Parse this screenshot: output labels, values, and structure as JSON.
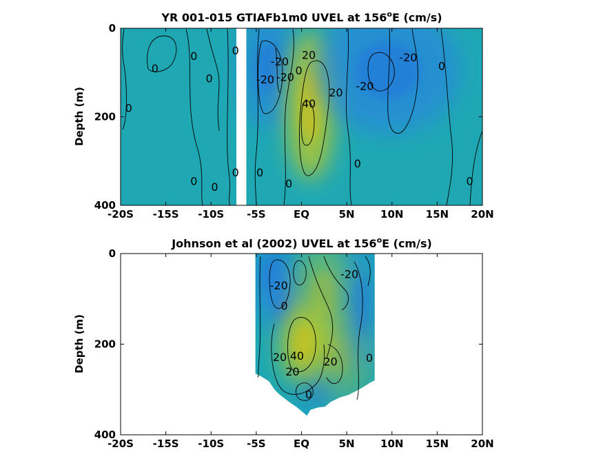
{
  "colors": {
    "background": "#ffffff",
    "neutral": "#1fa8b4",
    "westward": "#2a80e4",
    "eastward": "#b8c82a",
    "contour": "#000000"
  },
  "chart_data": [
    {
      "type": "heatmap",
      "title": "YR 001-015 GTIAFb1m0 UVEL at 156ºE (cm/s)",
      "title_main": "YR 001-015 GTIAFb1m0 UVEL at 156",
      "title_sup": "o",
      "title_end": "E (cm/s)",
      "xlabel": "",
      "ylabel": "Depth (m)",
      "xlim": [
        -20,
        20
      ],
      "ylim": [
        0,
        400
      ],
      "y_reversed": true,
      "x_ticks": [
        -20,
        -15,
        -10,
        -5,
        0,
        5,
        10,
        15,
        20
      ],
      "x_ticklabels": [
        "-20S",
        "-15S",
        "-10S",
        "-5S",
        "EQ",
        "5N",
        "10N",
        "15N",
        "20N"
      ],
      "y_ticks": [
        0,
        200,
        400
      ],
      "y_ticklabels": [
        "0",
        "200",
        "400"
      ],
      "masked_columns": [
        [
          -7.2,
          -6.1
        ]
      ],
      "features": [
        {
          "kind": "current",
          "sign": -1,
          "amplitude": 26,
          "lat": -3.6,
          "depth": 90,
          "lat_width": 1.9,
          "depth_width": 85
        },
        {
          "kind": "current",
          "sign": 1,
          "amplitude": 45,
          "lat": 1.0,
          "depth": 175,
          "lat_width": 1.5,
          "depth_width": 105
        },
        {
          "kind": "current",
          "sign": -1,
          "amplitude": 28,
          "lat": 9.5,
          "depth": 95,
          "lat_width": 4.5,
          "depth_width": 90
        }
      ],
      "contour_levels": [
        -20,
        0,
        20,
        40
      ],
      "contour_labels": [
        {
          "value": "0",
          "lat": -16.2,
          "depth": 90
        },
        {
          "value": "0",
          "lat": -11.9,
          "depth": 62
        },
        {
          "value": "0",
          "lat": -10.2,
          "depth": 113
        },
        {
          "value": "0",
          "lat": -7.3,
          "depth": 50
        },
        {
          "value": "0",
          "lat": -19.1,
          "depth": 180
        },
        {
          "value": "-20",
          "lat": -2.4,
          "depth": 75
        },
        {
          "value": "-20",
          "lat": -4.0,
          "depth": 115
        },
        {
          "value": "-20",
          "lat": -1.8,
          "depth": 110
        },
        {
          "value": "20",
          "lat": 0.8,
          "depth": 60
        },
        {
          "value": "0",
          "lat": -0.3,
          "depth": 95
        },
        {
          "value": "40",
          "lat": 0.8,
          "depth": 170
        },
        {
          "value": "20",
          "lat": 3.8,
          "depth": 145
        },
        {
          "value": "-20",
          "lat": 7.0,
          "depth": 130
        },
        {
          "value": "-20",
          "lat": 11.8,
          "depth": 65
        },
        {
          "value": "0",
          "lat": 15.5,
          "depth": 85
        },
        {
          "value": "0",
          "lat": -11.9,
          "depth": 345
        },
        {
          "value": "0",
          "lat": -9.6,
          "depth": 358
        },
        {
          "value": "0",
          "lat": -7.3,
          "depth": 325
        },
        {
          "value": "0",
          "lat": -4.6,
          "depth": 325
        },
        {
          "value": "0",
          "lat": -1.4,
          "depth": 350
        },
        {
          "value": "0",
          "lat": 6.2,
          "depth": 305
        },
        {
          "value": "0",
          "lat": 18.6,
          "depth": 345
        }
      ]
    },
    {
      "type": "heatmap",
      "title": "Johnson et al (2002) UVEL at 156ºE (cm/s)",
      "title_main": "Johnson et al (2002) UVEL at 156",
      "title_sup": "o",
      "title_end": "E (cm/s)",
      "xlabel": "",
      "ylabel": "Depth (m)",
      "xlim": [
        -20,
        20
      ],
      "ylim": [
        0,
        400
      ],
      "y_reversed": true,
      "x_ticks": [
        -20,
        -15,
        -10,
        -5,
        0,
        5,
        10,
        15,
        20
      ],
      "x_ticklabels": [
        "-20S",
        "-15S",
        "-10S",
        "-5S",
        "EQ",
        "5N",
        "10N",
        "15N",
        "20N"
      ],
      "y_ticks": [
        0,
        200,
        400
      ],
      "y_ticklabels": [
        "0",
        "200",
        "400"
      ],
      "data_domain": {
        "lat_min": -5.1,
        "lat_max": 8.1,
        "bottom_depth": [
          [
            -5.1,
            265
          ],
          [
            -4.4,
            272
          ],
          [
            -3.6,
            282
          ],
          [
            -3.0,
            300
          ],
          [
            -2.5,
            310
          ],
          [
            -2.0,
            318
          ],
          [
            -1.2,
            330
          ],
          [
            -0.6,
            338
          ],
          [
            0.6,
            358
          ],
          [
            1.0,
            345
          ],
          [
            1.8,
            340
          ],
          [
            2.6,
            338
          ],
          [
            3.2,
            328
          ],
          [
            4.2,
            318
          ],
          [
            5.2,
            312
          ],
          [
            6.0,
            304
          ],
          [
            6.8,
            295
          ],
          [
            7.6,
            285
          ],
          [
            8.1,
            280
          ]
        ]
      },
      "features": [
        {
          "kind": "current",
          "sign": -1,
          "amplitude": 24,
          "lat": -3.2,
          "depth": 45,
          "lat_width": 1.6,
          "depth_width": 55
        },
        {
          "kind": "current",
          "sign": -1,
          "amplitude": 22,
          "lat": -2.0,
          "depth": 115,
          "lat_width": 1.4,
          "depth_width": 45
        },
        {
          "kind": "current",
          "sign": 1,
          "amplitude": 20,
          "lat": 2.5,
          "depth": 90,
          "lat_width": 2.0,
          "depth_width": 70
        },
        {
          "kind": "current",
          "sign": 1,
          "amplitude": 48,
          "lat": 0.3,
          "depth": 200,
          "lat_width": 1.5,
          "depth_width": 55
        },
        {
          "kind": "current",
          "sign": 1,
          "amplitude": 18,
          "lat": 4.0,
          "depth": 225,
          "lat_width": 2.2,
          "depth_width": 60
        },
        {
          "kind": "current",
          "sign": -1,
          "amplitude": 20,
          "lat": 6.6,
          "depth": 115,
          "lat_width": 1.2,
          "depth_width": 90
        },
        {
          "kind": "current",
          "sign": -1,
          "amplitude": 12,
          "lat": 1.6,
          "depth": 305,
          "lat_width": 1.5,
          "depth_width": 35
        }
      ],
      "contour_levels": [
        -20,
        0,
        20,
        40
      ],
      "contour_labels": [
        {
          "value": "-20",
          "lat": -2.5,
          "depth": 70
        },
        {
          "value": "-20",
          "lat": 5.3,
          "depth": 45
        },
        {
          "value": "0",
          "lat": -1.9,
          "depth": 115
        },
        {
          "value": "20",
          "lat": -2.4,
          "depth": 228
        },
        {
          "value": "40",
          "lat": -0.5,
          "depth": 225
        },
        {
          "value": "20",
          "lat": -1.0,
          "depth": 260
        },
        {
          "value": "20",
          "lat": 3.2,
          "depth": 238
        },
        {
          "value": "0",
          "lat": 7.5,
          "depth": 230
        },
        {
          "value": "0",
          "lat": 0.8,
          "depth": 310
        }
      ]
    }
  ]
}
